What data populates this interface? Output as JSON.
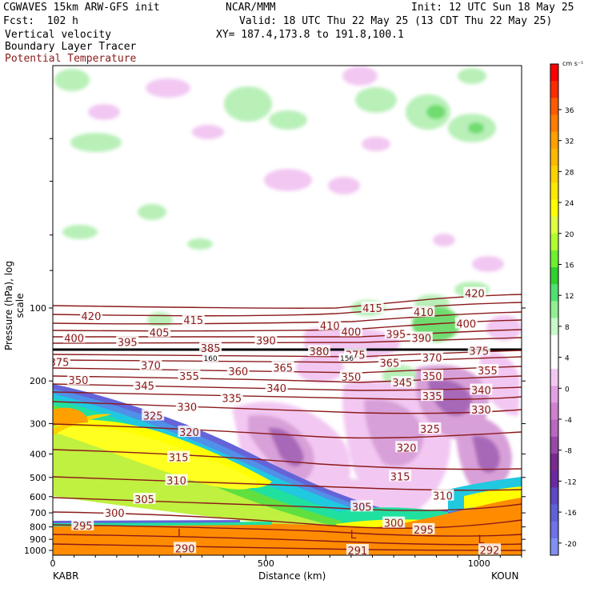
{
  "header": {
    "model_line": "CGWAVES 15km ARW-GFS init",
    "org": "NCAR/MMM",
    "init": "Init: 12 UTC Sun 18 May 25",
    "fcst": "Fcst:  102 h",
    "valid": "Valid: 18 UTC Thu 22 May 25 (13 CDT Thu 22 May 25)",
    "field1": "Vertical velocity",
    "field2": "Boundary Layer Tracer",
    "field3": "Potential Temperature",
    "xy": "XY= 187.4,173.8 to 191.8,100.1",
    "field3_color": "#8B1A1A"
  },
  "chart_data": {
    "type": "cross-section",
    "xlabel": "Distance (km)",
    "ylabel": "Pressure (hPa), log scale",
    "x_ticks": [
      0,
      500,
      1000
    ],
    "x_tick_labels": [
      "0",
      "500",
      "1000"
    ],
    "xlim": [
      0,
      1100
    ],
    "y_ticks": [
      100,
      200,
      300,
      400,
      500,
      600,
      700,
      800,
      900,
      1000
    ],
    "y_tick_labels": [
      "100",
      "200",
      "300",
      "400",
      "500",
      "600",
      "700",
      "800",
      "900",
      "1000"
    ],
    "left_station": "KABR",
    "right_station": "KOUN",
    "colorbar": {
      "unit": "cm s⁻¹",
      "ticks": [
        "36",
        "32",
        "28",
        "24",
        "20",
        "16",
        "12",
        "8",
        "4",
        "0",
        "-4",
        "-8",
        "-12",
        "-16",
        "-20"
      ],
      "colors": [
        "#ff0000",
        "#ff2a00",
        "#ff5a00",
        "#ff7c00",
        "#ffa000",
        "#ffb800",
        "#ffd000",
        "#ffe800",
        "#ffff00",
        "#e0ff40",
        "#b0ff30",
        "#70ee30",
        "#30d030",
        "#50e070",
        "#90f090",
        "#c8f8c8",
        "#ffffff",
        "#ffffff",
        "#f2c8f2",
        "#e2a0e2",
        "#d080d0",
        "#b868c0",
        "#9848a8",
        "#7a2a90",
        "#6a2aa0",
        "#6048c0",
        "#6060d8",
        "#7070e8",
        "#8090f0"
      ]
    },
    "theta_labels": [
      {
        "v": "420",
        "d": 90,
        "p": 108
      },
      {
        "v": "415",
        "d": 330,
        "p": 112
      },
      {
        "v": "415",
        "d": 750,
        "p": 100
      },
      {
        "v": "410",
        "d": 650,
        "p": 118
      },
      {
        "v": "410",
        "d": 870,
        "p": 104
      },
      {
        "v": "420",
        "d": 990,
        "p": 87
      },
      {
        "v": "405",
        "d": 250,
        "p": 126
      },
      {
        "v": "400",
        "d": 50,
        "p": 133
      },
      {
        "v": "400",
        "d": 700,
        "p": 125
      },
      {
        "v": "400",
        "d": 970,
        "p": 116
      },
      {
        "v": "395",
        "d": 175,
        "p": 138
      },
      {
        "v": "395",
        "d": 805,
        "p": 128
      },
      {
        "v": "390",
        "d": 500,
        "p": 136
      },
      {
        "v": "390",
        "d": 865,
        "p": 133
      },
      {
        "v": "385",
        "d": 370,
        "p": 146
      },
      {
        "v": "380",
        "d": 625,
        "p": 151
      },
      {
        "v": "375",
        "d": 710,
        "p": 156
      },
      {
        "v": "375",
        "d": 1000,
        "p": 150
      },
      {
        "v": "375",
        "d": 15,
        "p": 167
      },
      {
        "v": "370",
        "d": 230,
        "p": 172
      },
      {
        "v": "370",
        "d": 890,
        "p": 160
      },
      {
        "v": "365",
        "d": 540,
        "p": 176
      },
      {
        "v": "365",
        "d": 790,
        "p": 168
      },
      {
        "v": "360",
        "d": 435,
        "p": 182
      },
      {
        "v": "355",
        "d": 320,
        "p": 191
      },
      {
        "v": "355",
        "d": 1020,
        "p": 181
      },
      {
        "v": "350",
        "d": 60,
        "p": 198
      },
      {
        "v": "350",
        "d": 700,
        "p": 192
      },
      {
        "v": "350",
        "d": 890,
        "p": 191
      },
      {
        "v": "345",
        "d": 215,
        "p": 209
      },
      {
        "v": "345",
        "d": 820,
        "p": 203
      },
      {
        "v": "340",
        "d": 525,
        "p": 214
      },
      {
        "v": "340",
        "d": 1005,
        "p": 218
      },
      {
        "v": "335",
        "d": 420,
        "p": 235
      },
      {
        "v": "335",
        "d": 890,
        "p": 231
      },
      {
        "v": "330",
        "d": 315,
        "p": 256
      },
      {
        "v": "330",
        "d": 1005,
        "p": 263
      },
      {
        "v": "325",
        "d": 235,
        "p": 278
      },
      {
        "v": "325",
        "d": 885,
        "p": 315
      },
      {
        "v": "320",
        "d": 320,
        "p": 325
      },
      {
        "v": "320",
        "d": 830,
        "p": 376
      },
      {
        "v": "315",
        "d": 295,
        "p": 413
      },
      {
        "v": "315",
        "d": 815,
        "p": 495
      },
      {
        "v": "310",
        "d": 290,
        "p": 515
      },
      {
        "v": "310",
        "d": 915,
        "p": 595
      },
      {
        "v": "305",
        "d": 215,
        "p": 615
      },
      {
        "v": "305",
        "d": 725,
        "p": 660
      },
      {
        "v": "300",
        "d": 145,
        "p": 700
      },
      {
        "v": "300",
        "d": 800,
        "p": 770
      },
      {
        "v": "295",
        "d": 70,
        "p": 790
      },
      {
        "v": "295",
        "d": 870,
        "p": 820
      },
      {
        "v": "290",
        "d": 310,
        "p": 980
      },
      {
        "v": "291",
        "d": 715,
        "p": 1000
      },
      {
        "v": "292",
        "d": 1025,
        "p": 995
      }
    ],
    "low_markers": [
      {
        "v": "L",
        "d": 300,
        "p": 850
      },
      {
        "v": "L",
        "d": 705,
        "p": 860
      },
      {
        "v": "L",
        "d": 1005,
        "p": 900
      }
    ],
    "tropopause_labels": [
      {
        "v": "160",
        "d": 370,
        "p": 160
      },
      {
        "v": "156",
        "d": 690,
        "p": 160
      }
    ]
  }
}
